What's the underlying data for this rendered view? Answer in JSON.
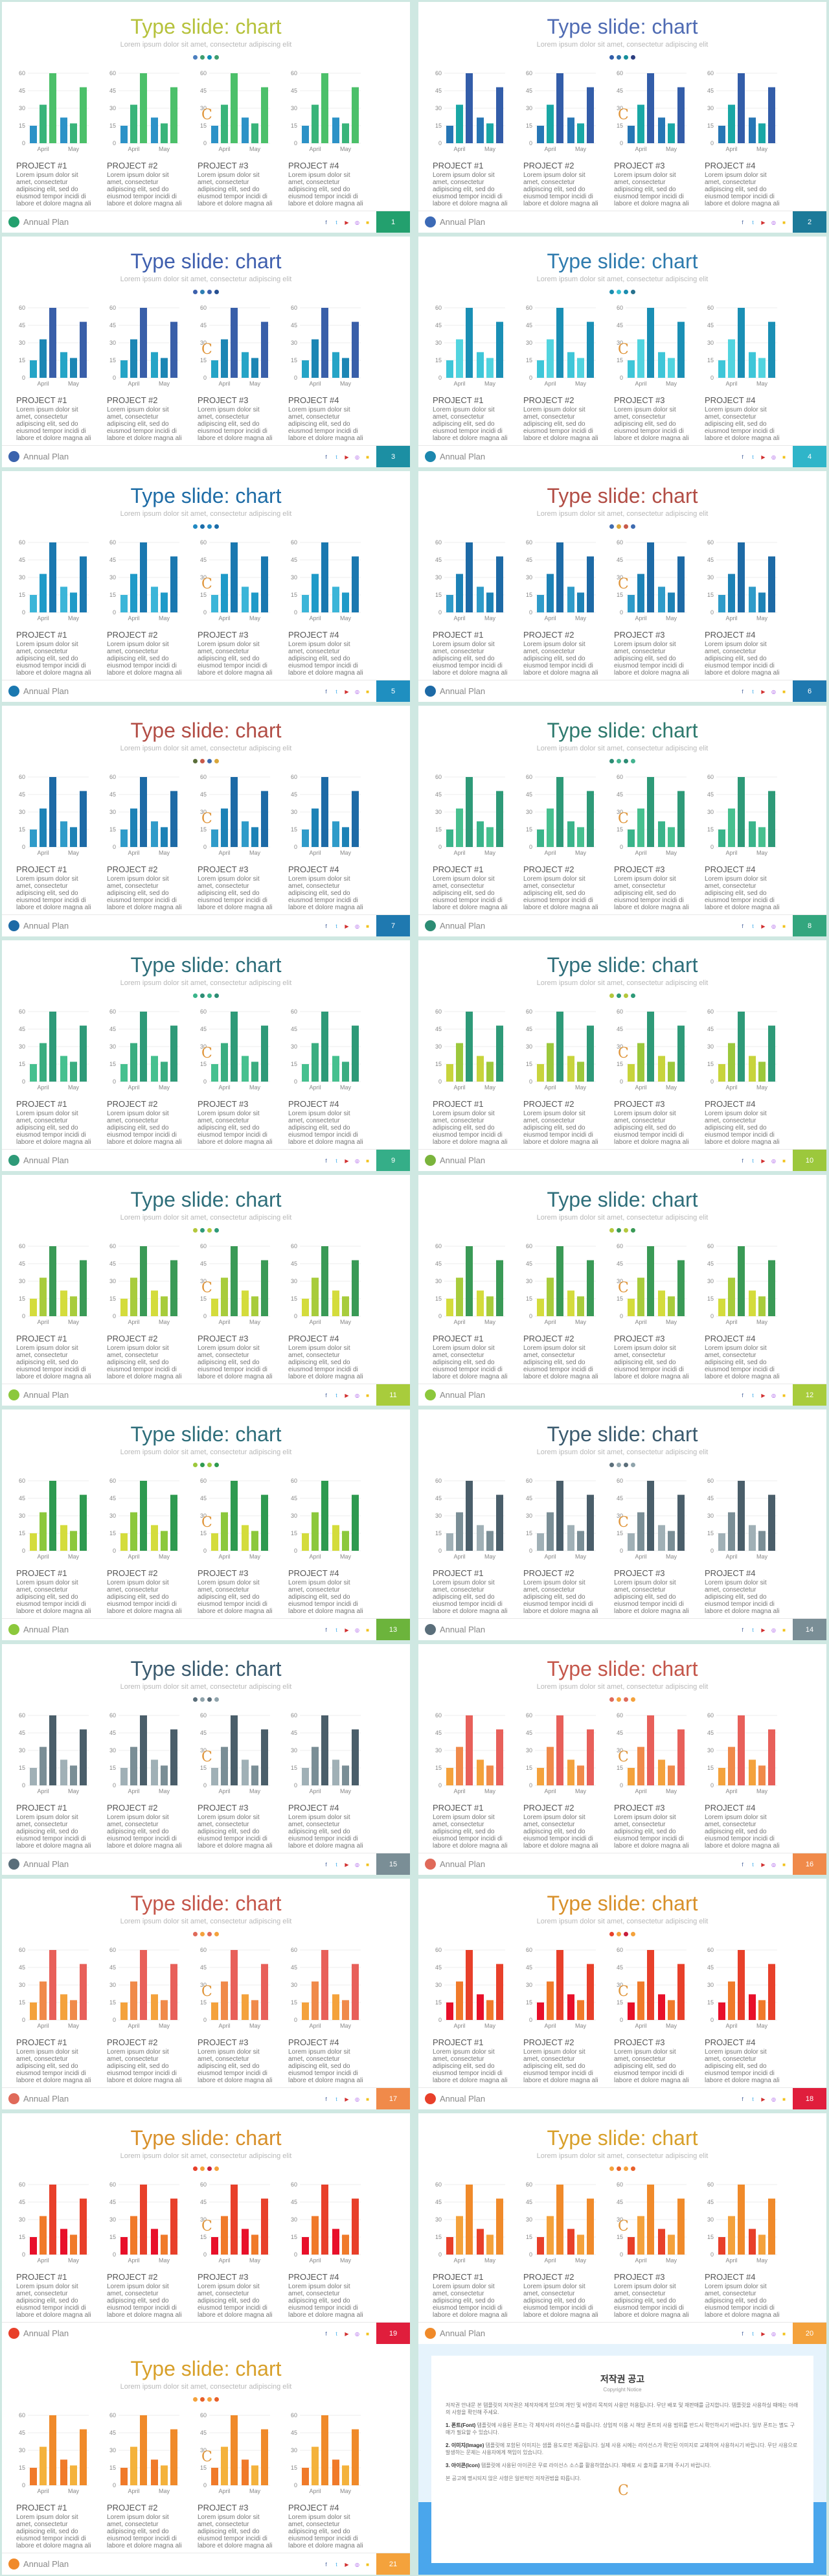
{
  "shared": {
    "title": "Type slide: chart",
    "subtitle": "Lorem ipsum dolor sit amet, consectetur adipiscing elit",
    "x_labels": [
      "April",
      "May"
    ],
    "y_ticks": [
      "60",
      "45",
      "30",
      "15",
      "0"
    ],
    "projects": [
      "PROJECT #1",
      "PROJECT #2",
      "PROJECT #3",
      "PROJECT #4"
    ],
    "body_text": "Lorem ipsum dolor sit amet, consectetur adipiscing elit, sed do eiusmod tempor incidi di labore et dolore magna ali",
    "footer_title": "Annual Plan",
    "logo_glyph": "C",
    "social_icons": [
      "facebook-icon",
      "twitter-icon",
      "youtube-icon",
      "instagram-icon",
      "kakao-icon"
    ],
    "social_glyphs": [
      "f",
      "t",
      "▶",
      "◎",
      "■"
    ]
  },
  "chart_data": {
    "type": "bar",
    "categories": [
      "April",
      "May"
    ],
    "y_ticks": [
      60,
      45,
      30,
      15,
      0
    ],
    "ylim": [
      0,
      60
    ],
    "series": [
      {
        "values": [
          15,
          22
        ]
      },
      {
        "values": [
          33,
          17
        ]
      },
      {
        "values": [
          60,
          48
        ]
      }
    ],
    "note": "Each slide repeats four identical small bar charts with this data, with the slide's colour theme"
  },
  "slides": [
    {
      "page": "1",
      "title_color": "#b6c23c",
      "dots": [
        "#4c7fbf",
        "#3f9e6f",
        "#0e8db8",
        "#3f9e6f"
      ],
      "bars": [
        "#2c92c7",
        "#39b47a",
        "#4cc06a"
      ],
      "logo": "#23a06e",
      "tab": "#23a06e",
      "social": [
        "#3b5998",
        "#2ba3e8",
        "#d12f2f",
        "#a24de6",
        "#f2c21b"
      ]
    },
    {
      "page": "2",
      "title_color": "#4f6bb3",
      "dots": [
        "#335da9",
        "#2f6fa8",
        "#168f9a",
        "#2c3e80"
      ],
      "bars": [
        "#2776b5",
        "#1aa7a5",
        "#335da9"
      ],
      "logo": "#3c6ab6",
      "tab": "#1c7a99",
      "social": [
        "#3b5998",
        "#2ba3e8",
        "#d12f2f",
        "#a24de6",
        "#f2c21b"
      ]
    },
    {
      "page": "3",
      "title_color": "#3f5fae",
      "dots": [
        "#3d61ad",
        "#2e7fb4",
        "#3d61ad",
        "#264f91"
      ],
      "bars": [
        "#25a4c6",
        "#1c86b4",
        "#395fa9"
      ],
      "logo": "#3b63ad",
      "tab": "#1c8fa3",
      "social": [
        "#3b5998",
        "#2ba3e8",
        "#d12f2f",
        "#a24de6",
        "#f2c21b"
      ]
    },
    {
      "page": "4",
      "title_color": "#2e7bae",
      "dots": [
        "#1b8db0",
        "#39c0d2",
        "#1b8db0",
        "#27728e"
      ],
      "bars": [
        "#3ec6d8",
        "#52d4df",
        "#1a8fb5"
      ],
      "logo": "#1c87ae",
      "tab": "#2fb5c9",
      "social": [
        "#3b5998",
        "#2ba3e8",
        "#d12f2f",
        "#a24de6",
        "#f2c21b"
      ]
    },
    {
      "page": "5",
      "title_color": "#1e6ca6",
      "dots": [
        "#2189c2",
        "#1b6ca9",
        "#2189c2",
        "#1b6ca9"
      ],
      "bars": [
        "#3cb5d8",
        "#1f9ac8",
        "#1a78b0"
      ],
      "logo": "#1a78b0",
      "tab": "#1f8fc0",
      "social": [
        "#3b5998",
        "#2ba3e8",
        "#d12f2f",
        "#a24de6",
        "#f2c21b"
      ]
    },
    {
      "page": "6",
      "title_color": "#b24d45",
      "dots": [
        "#3e6bb0",
        "#d8a63a",
        "#c85a4a",
        "#3e6bb0"
      ],
      "bars": [
        "#2f9bc9",
        "#1d82b6",
        "#1d6aa6"
      ],
      "logo": "#1d6aa6",
      "tab": "#1f79b0",
      "social": [
        "#3b5998",
        "#2ba3e8",
        "#d12f2f",
        "#a24de6",
        "#f2c21b"
      ]
    },
    {
      "page": "7",
      "title_color": "#b24d45",
      "dots": [
        "#5a6e3a",
        "#c85a4a",
        "#3e6bb0",
        "#d8a63a"
      ],
      "bars": [
        "#2f9bc9",
        "#1d82b6",
        "#1d6aa6"
      ],
      "logo": "#1d6aa6",
      "tab": "#1f79b0",
      "social": [
        "#3b5998",
        "#2ba3e8",
        "#d12f2f",
        "#a24de6",
        "#f2c21b"
      ]
    },
    {
      "page": "8",
      "title_color": "#2e7a6e",
      "dots": [
        "#2c8c74",
        "#44b490",
        "#2c8c74",
        "#44b490"
      ],
      "bars": [
        "#3ab48a",
        "#47c08f",
        "#2e9a78"
      ],
      "logo": "#2c8c74",
      "tab": "#33a67e",
      "social": [
        "#3b5998",
        "#2ba3e8",
        "#d12f2f",
        "#a24de6",
        "#f2c21b"
      ]
    },
    {
      "page": "9",
      "title_color": "#2e6e7a",
      "dots": [
        "#3ab48a",
        "#2c8c74",
        "#3ab48a",
        "#2c8c74"
      ],
      "bars": [
        "#46c08f",
        "#3aad80",
        "#2e9a78"
      ],
      "logo": "#2e9a78",
      "tab": "#35ae88",
      "social": [
        "#3b5998",
        "#2ba3e8",
        "#d12f2f",
        "#a24de6",
        "#f2c21b"
      ]
    },
    {
      "page": "10",
      "title_color": "#2e6e7a",
      "dots": [
        "#b4c83c",
        "#2e9a78",
        "#b4c83c",
        "#2e9a78"
      ],
      "bars": [
        "#c8d43c",
        "#9cc83c",
        "#2e9a78"
      ],
      "logo": "#7ab43c",
      "tab": "#9cc83c",
      "social": [
        "#3b5998",
        "#2ba3e8",
        "#d12f2f",
        "#a24de6",
        "#f2c21b"
      ]
    },
    {
      "page": "11",
      "title_color": "#2e6e7a",
      "dots": [
        "#b4c83c",
        "#2e9a78",
        "#b4c83c",
        "#2e9a78"
      ],
      "bars": [
        "#d4dc3c",
        "#a8cc3c",
        "#3a9a56"
      ],
      "logo": "#8cc83c",
      "tab": "#a8cc3c",
      "social": [
        "#3b5998",
        "#2ba3e8",
        "#d12f2f",
        "#a24de6",
        "#f2c21b"
      ]
    },
    {
      "page": "12",
      "title_color": "#2e6e7a",
      "dots": [
        "#b4c83c",
        "#3a9a56",
        "#b4c83c",
        "#3a9a56"
      ],
      "bars": [
        "#d4dc3c",
        "#a8cc3c",
        "#3a9a56"
      ],
      "logo": "#8cc83c",
      "tab": "#a8cc3c",
      "social": [
        "#3b5998",
        "#2ba3e8",
        "#d12f2f",
        "#a24de6",
        "#f2c21b"
      ]
    },
    {
      "page": "13",
      "title_color": "#2e6e7a",
      "dots": [
        "#9cc83c",
        "#2e9a50",
        "#9cc83c",
        "#2e9a50"
      ],
      "bars": [
        "#d4dc3c",
        "#8cc83c",
        "#2e9a50"
      ],
      "logo": "#8cc83c",
      "tab": "#6cb43c",
      "social": [
        "#3b5998",
        "#2ba3e8",
        "#d12f2f",
        "#a24de6",
        "#f2c21b"
      ]
    },
    {
      "page": "14",
      "title_color": "#3a5a6e",
      "dots": [
        "#5a6e7a",
        "#90a4ac",
        "#5a6e7a",
        "#90a4ac"
      ],
      "bars": [
        "#a0b0b6",
        "#7a8e96",
        "#4a5e6a"
      ],
      "logo": "#5a6e7a",
      "tab": "#7a8e96",
      "social": [
        "#3b5998",
        "#2ba3e8",
        "#d12f2f",
        "#a24de6",
        "#f2c21b"
      ]
    },
    {
      "page": "15",
      "title_color": "#3a5a6e",
      "dots": [
        "#5a6e7a",
        "#90a4ac",
        "#5a6e7a",
        "#90a4ac"
      ],
      "bars": [
        "#a0b0b6",
        "#7a8e96",
        "#4a5e6a"
      ],
      "logo": "#5a6e7a",
      "tab": "#7a8e96",
      "social": [
        "#3b5998",
        "#2ba3e8",
        "#d12f2f",
        "#a24de6",
        "#f2c21b"
      ]
    },
    {
      "page": "16",
      "title_color": "#c4564a",
      "dots": [
        "#e06a5a",
        "#f4a23c",
        "#e06a5a",
        "#f4a23c"
      ],
      "bars": [
        "#f4a23c",
        "#f08a4a",
        "#e8605a"
      ],
      "logo": "#e06a5a",
      "tab": "#f08a4a",
      "social": [
        "#3b5998",
        "#2ba3e8",
        "#d12f2f",
        "#a24de6",
        "#f2c21b"
      ]
    },
    {
      "page": "17",
      "title_color": "#c4564a",
      "dots": [
        "#e06a5a",
        "#f4a23c",
        "#e06a5a",
        "#f4a23c"
      ],
      "bars": [
        "#f4a23c",
        "#f08a4a",
        "#e8605a"
      ],
      "logo": "#e06a5a",
      "tab": "#f08a4a",
      "social": [
        "#3b5998",
        "#2ba3e8",
        "#d12f2f",
        "#a24de6",
        "#f2c21b"
      ]
    },
    {
      "page": "18",
      "title_color": "#d8902a",
      "dots": [
        "#e8402a",
        "#f4a23c",
        "#c81e3c",
        "#f4a23c"
      ],
      "bars": [
        "#e8102a",
        "#f07a2a",
        "#e8402a"
      ],
      "logo": "#e8402a",
      "tab": "#e01e3c",
      "social": [
        "#3b5998",
        "#2ba3e8",
        "#d12f2f",
        "#a24de6",
        "#f2c21b"
      ]
    },
    {
      "page": "19",
      "title_color": "#d8902a",
      "dots": [
        "#e8402a",
        "#f4a23c",
        "#c81e3c",
        "#f4a23c"
      ],
      "bars": [
        "#e8102a",
        "#f07a2a",
        "#e8402a"
      ],
      "logo": "#e8402a",
      "tab": "#e01e3c",
      "social": [
        "#3b5998",
        "#2ba3e8",
        "#d12f2f",
        "#a24de6",
        "#f2c21b"
      ]
    },
    {
      "page": "20",
      "title_color": "#d8a02a",
      "dots": [
        "#f4a23c",
        "#e8602a",
        "#f4a23c",
        "#e8602a"
      ],
      "bars": [
        "#e8402a",
        "#f4a23c",
        "#f08a2a"
      ],
      "logo": "#f08a2a",
      "tab": "#f4a23c",
      "social": [
        "#3b5998",
        "#2ba3e8",
        "#d12f2f",
        "#a24de6",
        "#f2c21b"
      ]
    },
    {
      "page": "21",
      "title_color": "#d8a02a",
      "dots": [
        "#f4a23c",
        "#e8602a",
        "#f4a23c",
        "#e8602a"
      ],
      "bars": [
        "#f07a2a",
        "#f4b23c",
        "#f08a2a"
      ],
      "logo": "#f08a2a",
      "tab": "#f4a23c",
      "social": [
        "#3b5998",
        "#2ba3e8",
        "#d12f2f",
        "#a24de6",
        "#f2c21b"
      ]
    }
  ],
  "notice": {
    "title": "저작권 공고",
    "subtitle": "Copyright Notice",
    "band_color": "#4aa6ec",
    "logo_color": "#e0963c",
    "paragraphs": [
      {
        "strong": "",
        "text": "저작권 안내문 본 템플릿의 저작권은 제작자에게 있으며 개인 및 비영리 목적의 사용만 허용됩니다. 무단 배포 및 재판매를 금지합니다. 템플릿을 사용하실 때에는 아래의 사항을 확인해 주세요."
      },
      {
        "strong": "1. 폰트(Font)",
        "text": " 템플릿에 사용된 폰트는 각 제작사의 라이선스를 따릅니다. 상업적 이용 시 해당 폰트의 사용 범위를 반드시 확인하시기 바랍니다. 일부 폰트는 별도 구매가 필요할 수 있습니다."
      },
      {
        "strong": "2. 이미지(Image)",
        "text": " 템플릿에 포함된 이미지는 샘플 용도로만 제공됩니다. 실제 사용 시에는 라이선스가 확인된 이미지로 교체하여 사용하시기 바랍니다. 무단 사용으로 발생하는 문제는 사용자에게 책임이 있습니다."
      },
      {
        "strong": "3. 아이콘(Icon)",
        "text": " 템플릿에 사용된 아이콘은 무료 라이선스 소스를 활용하였습니다. 재배포 시 출처를 표기해 주시기 바랍니다."
      },
      {
        "strong": "",
        "text": "본 공고에 명시되지 않은 사항은 일반적인 저작권법을 따릅니다."
      }
    ]
  }
}
